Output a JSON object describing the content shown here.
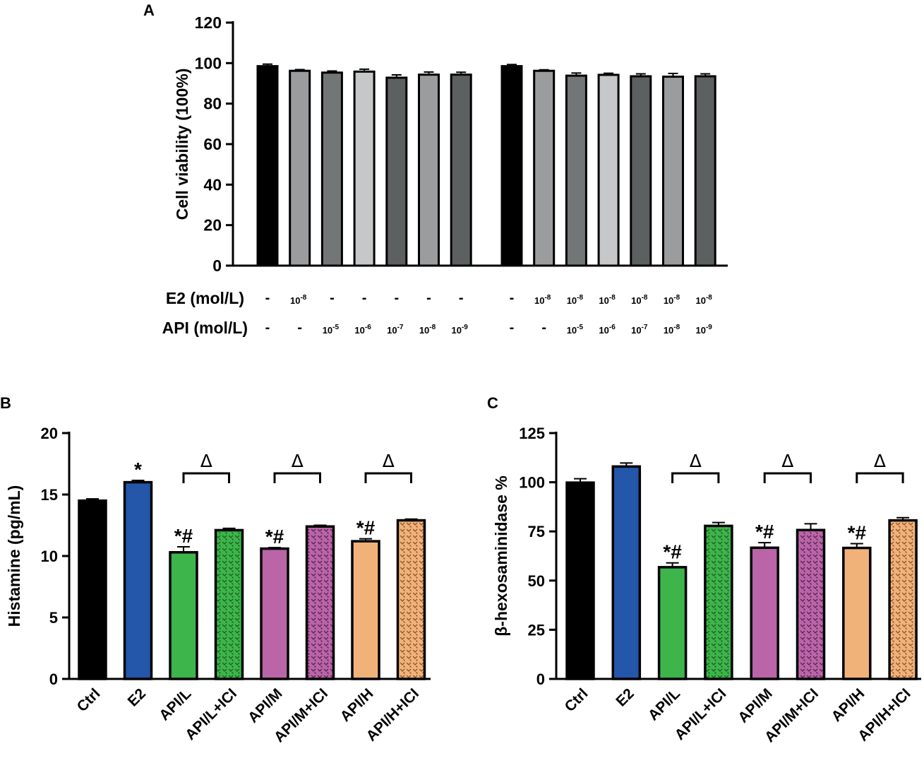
{
  "chart_data": [
    {
      "panel": "A",
      "type": "bar",
      "ylabel": "Cell viability (100%)",
      "ylim": [
        0,
        120
      ],
      "yticks": [
        0,
        20,
        40,
        60,
        80,
        100,
        120
      ],
      "row_labels": [
        "E2 (mol/L)",
        "API (mol/L)"
      ],
      "groups": [
        {
          "bars": [
            {
              "value": 98.5,
              "error": 1.0,
              "color": "#000000",
              "e2": "-",
              "api": "-"
            },
            {
              "value": 96.2,
              "error": 0.6,
              "color": "#9a9c9e",
              "e2": "10",
              "e2_exp": "-8",
              "api": "-"
            },
            {
              "value": 95.3,
              "error": 0.8,
              "color": "#737677",
              "e2": "-",
              "api": "10",
              "api_exp": "-5"
            },
            {
              "value": 95.8,
              "error": 1.2,
              "color": "#c6c7c8",
              "e2": "-",
              "api": "10",
              "api_exp": "-6"
            },
            {
              "value": 92.8,
              "error": 1.4,
              "color": "#5d6061",
              "e2": "-",
              "api": "10",
              "api_exp": "-7"
            },
            {
              "value": 94.3,
              "error": 1.3,
              "color": "#9a9c9e",
              "e2": "-",
              "api": "10",
              "api_exp": "-8"
            },
            {
              "value": 94.3,
              "error": 1.2,
              "color": "#5d6061",
              "e2": "-",
              "api": "10",
              "api_exp": "-9"
            }
          ]
        },
        {
          "bars": [
            {
              "value": 98.5,
              "error": 0.8,
              "color": "#000000",
              "e2": "-",
              "api": "-"
            },
            {
              "value": 96.2,
              "error": 0.5,
              "color": "#9a9c9e",
              "e2": "10",
              "e2_exp": "-8",
              "api": "-"
            },
            {
              "value": 93.8,
              "error": 1.3,
              "color": "#737677",
              "e2": "10",
              "e2_exp": "-8",
              "api": "10",
              "api_exp": "-5"
            },
            {
              "value": 94.2,
              "error": 0.8,
              "color": "#c6c7c8",
              "e2": "10",
              "e2_exp": "-8",
              "api": "10",
              "api_exp": "-6"
            },
            {
              "value": 93.5,
              "error": 1.2,
              "color": "#5d6061",
              "e2": "10",
              "e2_exp": "-8",
              "api": "10",
              "api_exp": "-7"
            },
            {
              "value": 93.3,
              "error": 1.6,
              "color": "#9a9c9e",
              "e2": "10",
              "e2_exp": "-8",
              "api": "10",
              "api_exp": "-8"
            },
            {
              "value": 93.5,
              "error": 1.2,
              "color": "#5d6061",
              "e2": "10",
              "e2_exp": "-8",
              "api": "10",
              "api_exp": "-9"
            }
          ]
        }
      ]
    },
    {
      "panel": "B",
      "type": "bar",
      "ylabel": "Histamine (pg/mL)",
      "ylim": [
        0,
        20
      ],
      "yticks": [
        0,
        5,
        10,
        15,
        20
      ],
      "categories": [
        "Ctrl",
        "E2",
        "API/L",
        "API/L+ICI",
        "API/M",
        "API/M+ICI",
        "API/H",
        "API/H+ICI"
      ],
      "values": [
        14.5,
        16.0,
        10.3,
        12.1,
        10.6,
        12.4,
        11.2,
        12.9
      ],
      "errors": [
        0.15,
        0.15,
        0.45,
        0.15,
        0.08,
        0.1,
        0.2,
        0.1
      ],
      "colors": [
        "#000000",
        "#2456aa",
        "#3db54a",
        "#3db54a",
        "#b965a8",
        "#b965a8",
        "#f1b27a",
        "#f1b27a"
      ],
      "hatched": [
        false,
        false,
        false,
        true,
        false,
        true,
        false,
        true
      ],
      "annotations": [
        "",
        "*",
        "*#",
        "",
        "*#",
        "",
        "*#",
        ""
      ],
      "brackets": [
        {
          "from": 2,
          "to": 3,
          "label": "Δ"
        },
        {
          "from": 4,
          "to": 5,
          "label": "Δ"
        },
        {
          "from": 6,
          "to": 7,
          "label": "Δ"
        }
      ]
    },
    {
      "panel": "C",
      "type": "bar",
      "ylabel": "β-hexosaminidase %",
      "ylim": [
        0,
        125
      ],
      "yticks": [
        0,
        25,
        50,
        75,
        100,
        125
      ],
      "categories": [
        "Ctrl",
        "E2",
        "API/L",
        "API/L+ICI",
        "API/M",
        "API/M+ICI",
        "API/H",
        "API/H+ICI"
      ],
      "values": [
        99.8,
        108.0,
        56.8,
        77.8,
        66.7,
        75.7,
        66.6,
        80.6
      ],
      "errors": [
        2.0,
        1.8,
        2.2,
        1.7,
        2.6,
        3.2,
        2.2,
        1.4
      ],
      "colors": [
        "#000000",
        "#2456aa",
        "#3db54a",
        "#3db54a",
        "#b965a8",
        "#b965a8",
        "#f1b27a",
        "#f1b27a"
      ],
      "hatched": [
        false,
        false,
        false,
        true,
        false,
        true,
        false,
        true
      ],
      "annotations": [
        "",
        "",
        "*#",
        "",
        "*#",
        "",
        "*#",
        ""
      ],
      "brackets": [
        {
          "from": 2,
          "to": 3,
          "label": "Δ"
        },
        {
          "from": 4,
          "to": 5,
          "label": "Δ"
        },
        {
          "from": 6,
          "to": 7,
          "label": "Δ"
        }
      ]
    }
  ]
}
